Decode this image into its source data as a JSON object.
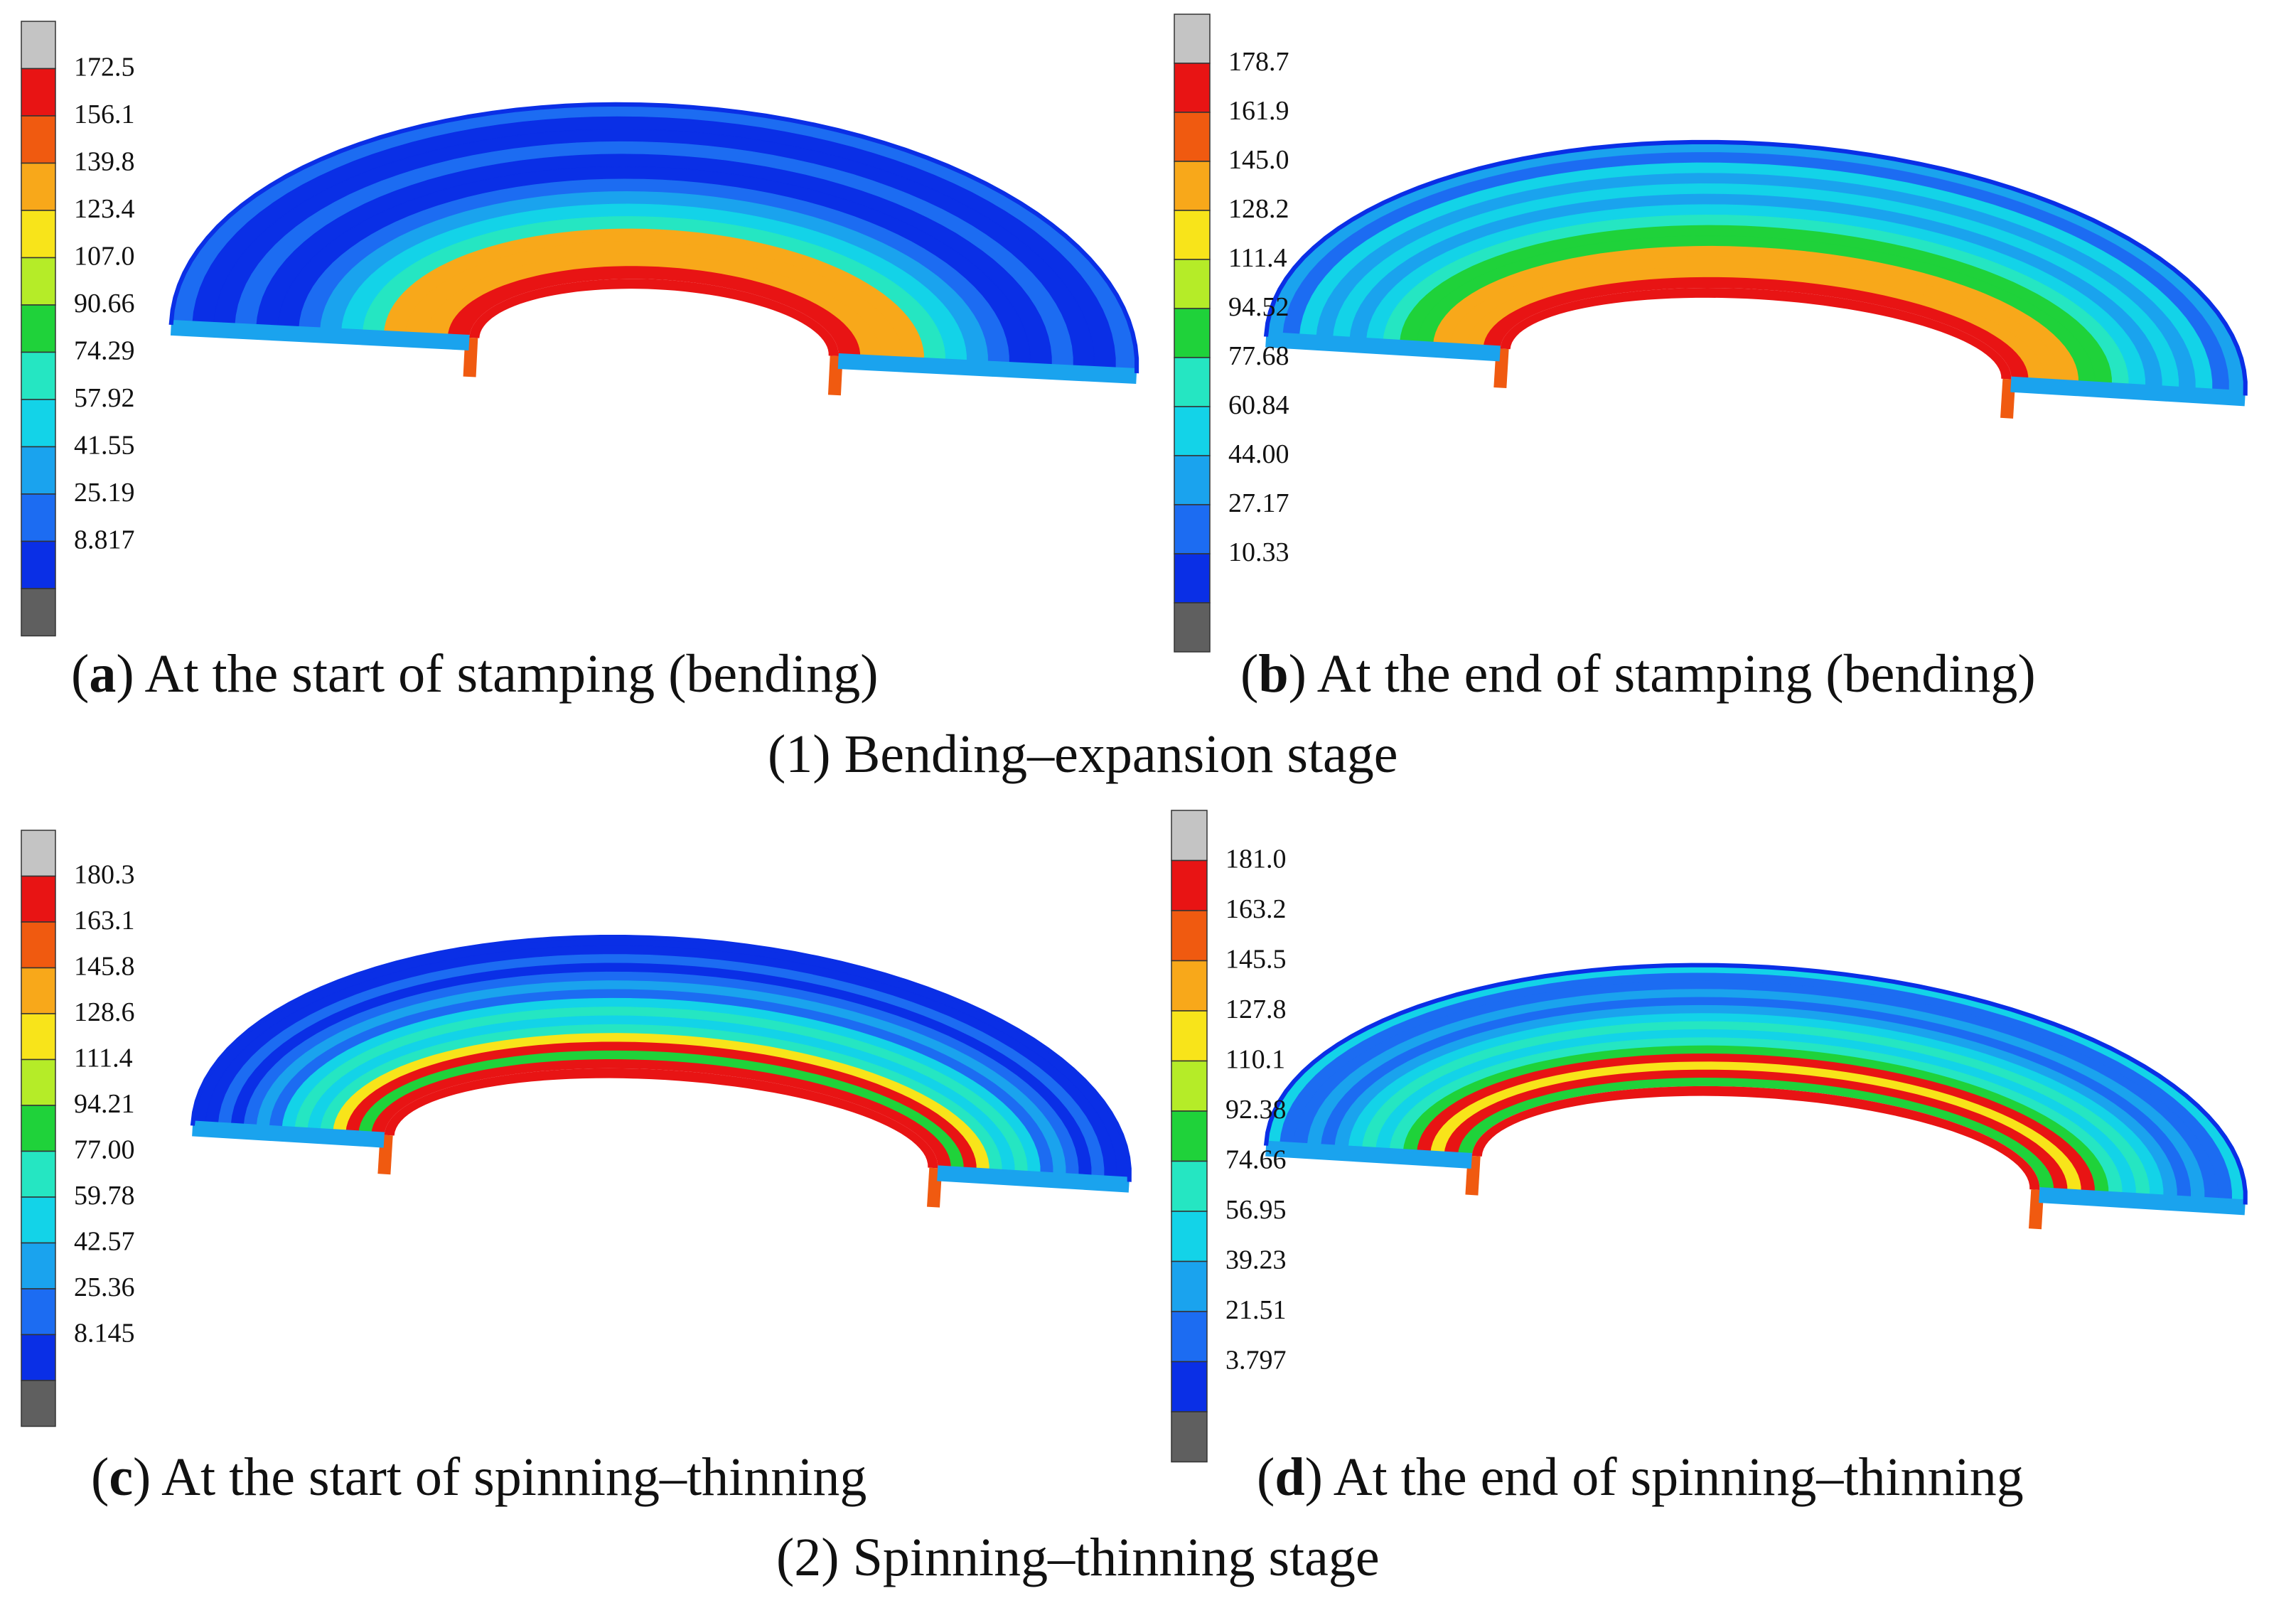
{
  "palette": [
    "#5f5f5f",
    "#0a2fe6",
    "#1c6cf2",
    "#1aa3ee",
    "#13d3e8",
    "#25e6c2",
    "#1fd23a",
    "#b5ec28",
    "#f8e41a",
    "#f8a81a",
    "#f05a10",
    "#e81414",
    "#c4c4c4"
  ],
  "panels": [
    {
      "id": "a",
      "letter": "a",
      "caption": "At the start of stamping (bending)",
      "legend_values": [
        "172.5",
        "156.1",
        "139.8",
        "123.4",
        "107.0",
        "90.66",
        "74.29",
        "57.92",
        "41.55",
        "25.19",
        "8.817"
      ]
    },
    {
      "id": "b",
      "letter": "b",
      "caption": "At the end of stamping (bending)",
      "legend_values": [
        "178.7",
        "161.9",
        "145.0",
        "128.2",
        "111.4",
        "94.52",
        "77.68",
        "60.84",
        "44.00",
        "27.17",
        "10.33"
      ]
    },
    {
      "id": "c",
      "letter": "c",
      "caption": "At the start of spinning–thinning",
      "legend_values": [
        "180.3",
        "163.1",
        "145.8",
        "128.6",
        "111.4",
        "94.21",
        "77.00",
        "59.78",
        "42.57",
        "25.36",
        "8.145"
      ]
    },
    {
      "id": "d",
      "letter": "d",
      "caption": "At the end of spinning–thinning",
      "legend_values": [
        "181.0",
        "163.2",
        "145.5",
        "127.8",
        "110.1",
        "92.38",
        "74.66",
        "56.95",
        "39.23",
        "21.51",
        "3.797"
      ]
    }
  ],
  "stages": [
    {
      "title": "(1) Bending–expansion stage"
    },
    {
      "title": "(2) Spinning–thinning stage"
    }
  ]
}
